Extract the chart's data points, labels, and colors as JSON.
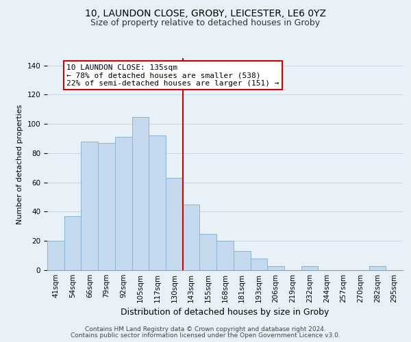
{
  "title": "10, LAUNDON CLOSE, GROBY, LEICESTER, LE6 0YZ",
  "subtitle": "Size of property relative to detached houses in Groby",
  "xlabel": "Distribution of detached houses by size in Groby",
  "ylabel": "Number of detached properties",
  "bar_labels": [
    "41sqm",
    "54sqm",
    "66sqm",
    "79sqm",
    "92sqm",
    "105sqm",
    "117sqm",
    "130sqm",
    "143sqm",
    "155sqm",
    "168sqm",
    "181sqm",
    "193sqm",
    "206sqm",
    "219sqm",
    "232sqm",
    "244sqm",
    "257sqm",
    "270sqm",
    "282sqm",
    "295sqm"
  ],
  "bar_values": [
    20,
    37,
    88,
    87,
    91,
    105,
    92,
    63,
    45,
    25,
    20,
    13,
    8,
    3,
    0,
    3,
    0,
    0,
    0,
    3,
    0
  ],
  "bar_color": "#c5d9ee",
  "bar_edge_color": "#8ab4d4",
  "vline_color": "#cc0000",
  "annotation_title": "10 LAUNDON CLOSE: 135sqm",
  "annotation_line1": "← 78% of detached houses are smaller (538)",
  "annotation_line2": "22% of semi-detached houses are larger (151) →",
  "annotation_box_color": "#ffffff",
  "annotation_box_edge": "#cc0000",
  "bg_color": "#e8f0f8",
  "ylim": [
    0,
    145
  ],
  "footer1": "Contains HM Land Registry data © Crown copyright and database right 2024.",
  "footer2": "Contains public sector information licensed under the Open Government Licence v3.0.",
  "title_fontsize": 10,
  "subtitle_fontsize": 9,
  "xlabel_fontsize": 9,
  "ylabel_fontsize": 8,
  "tick_fontsize": 7.5,
  "footer_fontsize": 6.5
}
